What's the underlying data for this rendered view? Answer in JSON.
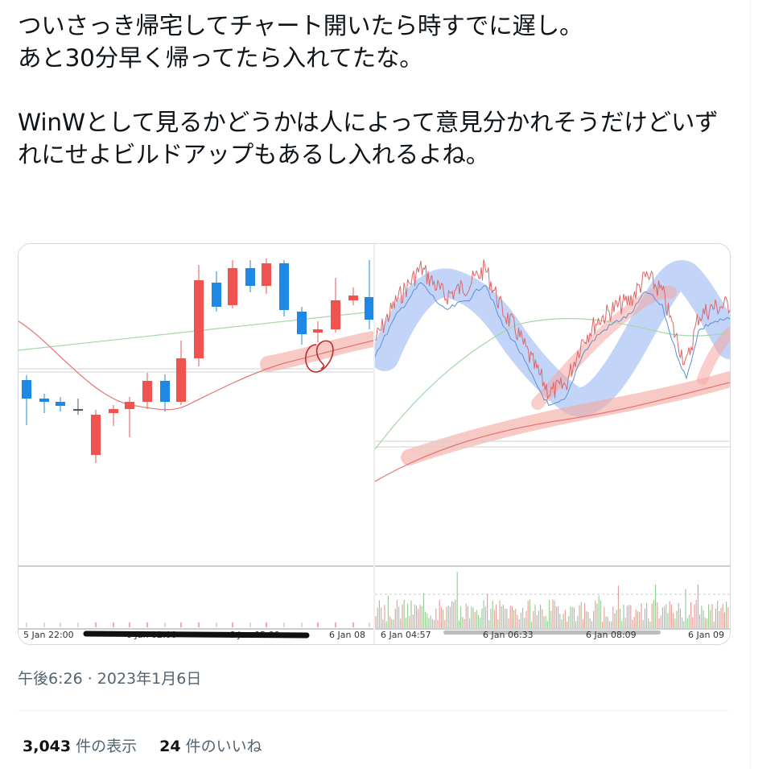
{
  "tweet": {
    "text": "ついさっき帰宅してチャート開いたら時すでに遅し。\nあと30分早く帰ってたら入れてたな。\n\nWinWとして見るかどうかは人によって意見分かれそうだけどいずれにせよビルドアップもあるし入れるよね。",
    "timestamp": "午後6:26 · 2023年1月6日"
  },
  "stats": {
    "views_count": "3,043",
    "views_label": "件の表示",
    "likes_count": "24",
    "likes_label": "件のいいね"
  },
  "media": {
    "left_chart": {
      "time_labels": [
        "5 Jan 22:00",
        "6 Jan 02:00",
        "6 Jan 05:00",
        "6 Jan 08"
      ]
    },
    "right_chart": {
      "time_labels": [
        "6 Jan 04:57",
        "6 Jan 06:33",
        "6 Jan 08:09",
        "6 Jan 09"
      ]
    },
    "colors": {
      "bull": "#ef5350",
      "bear": "#1e88e5",
      "ma_red": "#e57373",
      "ma_green": "#a5d6a7",
      "highlight_blue": "#8fb2f2",
      "highlight_red": "#f4a6a0"
    }
  }
}
